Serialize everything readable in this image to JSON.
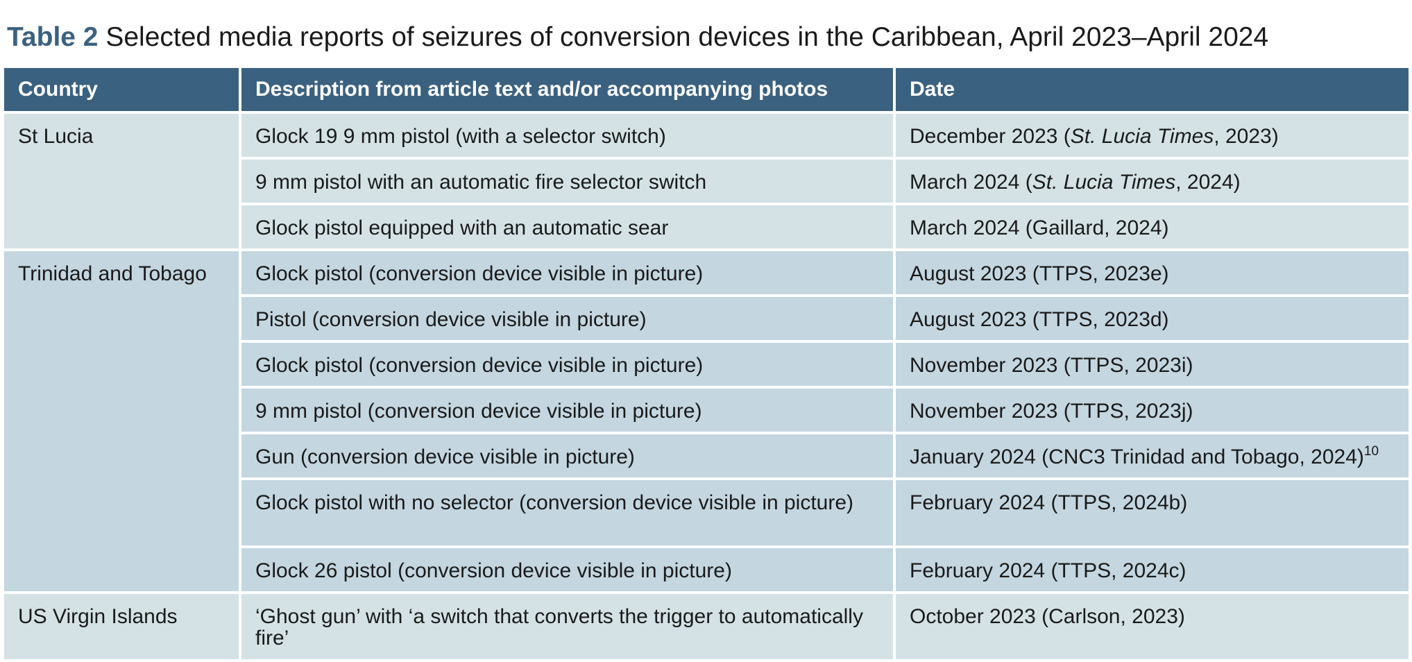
{
  "caption": {
    "label": "Table 2",
    "text": " Selected media reports of seizures of conversion devices in the Caribbean, April 2023–April 2024"
  },
  "headers": {
    "country": "Country",
    "description": "Description from article text and/or accompanying photos",
    "date": "Date"
  },
  "groups": [
    {
      "country": "St Lucia",
      "rows": [
        {
          "description": "Glock 19 9 mm pistol (with a selector switch)",
          "date_text": "December 2023 (",
          "source_italic": "St. Lucia Times",
          "date_suffix": ", 2023)"
        },
        {
          "description": "9 mm pistol with an automatic fire selector switch",
          "date_text": "March 2024 (",
          "source_italic": "St. Lucia Times",
          "date_suffix": ", 2024)"
        },
        {
          "description": "Glock pistol equipped with an automatic sear",
          "date_text": "March 2024 (Gaillard, 2024)"
        }
      ]
    },
    {
      "country": "Trinidad and Tobago",
      "rows": [
        {
          "description": "Glock pistol (conversion device visible in picture)",
          "date_text": "August 2023 (TTPS, 2023e)"
        },
        {
          "description": "Pistol (conversion device visible in picture)",
          "date_text": "August 2023 (TTPS, 2023d)"
        },
        {
          "description": "Glock pistol (conversion device visible in picture)",
          "date_text": "November 2023 (TTPS, 2023i)"
        },
        {
          "description": "9 mm pistol (conversion device visible in picture)",
          "date_text": "November 2023 (TTPS, 2023j)"
        },
        {
          "description": "Gun (conversion device visible in picture)",
          "date_text": "January 2024 (CNC3 Trinidad and Tobago, 2024)",
          "footnote": "10"
        },
        {
          "description": "Glock pistol with no selector (conversion device visible in picture)",
          "date_text": "February 2024 (TTPS, 2024b)"
        },
        {
          "description": "Glock 26 pistol (conversion device visible in picture)",
          "date_text": "February 2024 (TTPS, 2024c)"
        }
      ]
    },
    {
      "country": "US Virgin Islands",
      "rows": [
        {
          "description": "‘Ghost gun’ with ‘a switch that converts the trigger to automatically fire’",
          "date_text": "October 2023 (Carlson, 2023)"
        }
      ]
    }
  ]
}
